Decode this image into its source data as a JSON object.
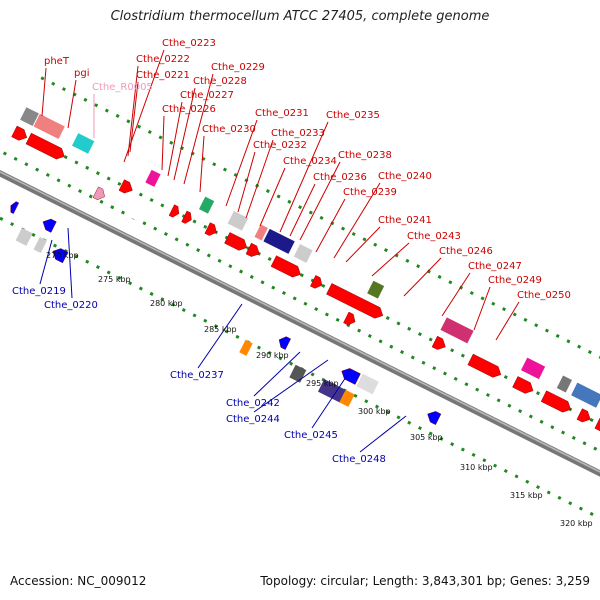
{
  "title": "Clostridium thermocellum ATCC 27405, complete genome",
  "footer": {
    "accession": "Accession: NC_009012",
    "topology": "Topology: circular; Length: 3,843,301 bp; Genes: 3,259"
  },
  "colors": {
    "forward_label": "#cc0000",
    "reverse_label": "#0000aa",
    "rna_label": "#ee99bb",
    "forward_gene": "#ff0000",
    "reverse_gene": "#0000ff",
    "backbone": "#808080",
    "scale_dots": "#228822"
  },
  "forward_labels": [
    "pheT",
    "pgi",
    "Cthe_R0005",
    "Cthe_0221",
    "Cthe_0222",
    "Cthe_0223",
    "Cthe_0226",
    "Cthe_0227",
    "Cthe_0228",
    "Cthe_0229",
    "Cthe_0230",
    "Cthe_0231",
    "Cthe_0232",
    "Cthe_0233",
    "Cthe_0234",
    "Cthe_0235",
    "Cthe_0236",
    "Cthe_0238",
    "Cthe_0239",
    "Cthe_0240",
    "Cthe_0241",
    "Cthe_0243",
    "Cthe_0246",
    "Cthe_0247",
    "Cthe_0249",
    "Cthe_0250"
  ],
  "reverse_labels": [
    "Cthe_0219",
    "Cthe_0220",
    "Cthe_0237",
    "Cthe_0242",
    "Cthe_0244",
    "Cthe_0245",
    "Cthe_0248"
  ],
  "ticks": [
    "270 kbp",
    "275 kbp",
    "280 kbp",
    "285 kbp",
    "290 kbp",
    "295 kbp",
    "300 kbp",
    "305 kbp",
    "310 kbp",
    "315 kbp",
    "320 kbp"
  ]
}
